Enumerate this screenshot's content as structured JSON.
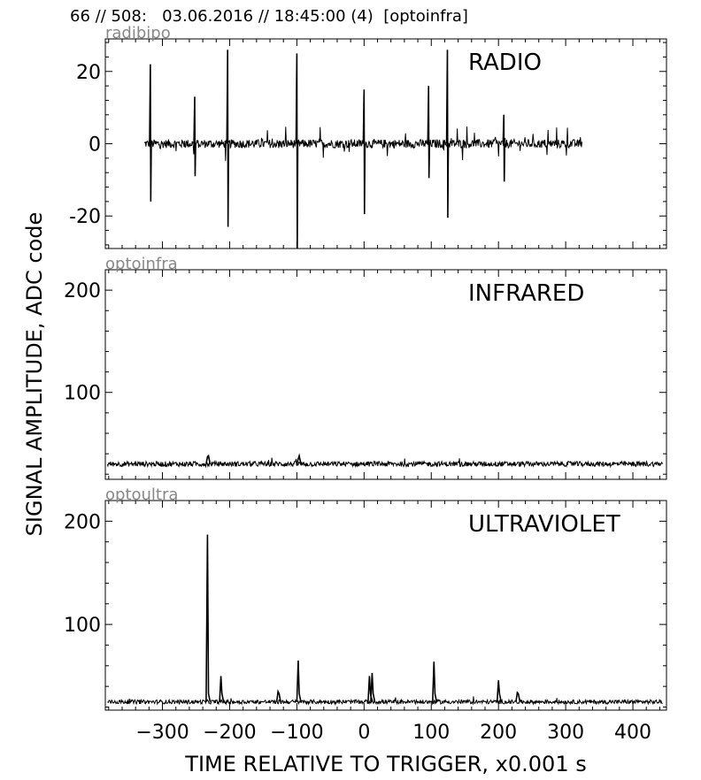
{
  "header": {
    "text": "66 // 508:   03.06.2016 // 18:45:00 (4)  [optoinfra]"
  },
  "figure": {
    "ylabel": "SIGNAL AMPLITUDE,  ADC code",
    "xlabel": "TIME RELATIVE TO TRIGGER,   x0.001 s"
  },
  "chart_data": [
    {
      "type": "line",
      "panel_label": "radibipo",
      "title": "RADIO",
      "xlim": [
        -385,
        450
      ],
      "ylim": [
        -29,
        29
      ],
      "yticks": [
        20,
        0,
        -20
      ],
      "ytick_labels": [
        "20",
        "0",
        "-20"
      ],
      "xticks": [
        -300,
        -200,
        -100,
        0,
        100,
        200,
        300,
        400
      ],
      "data_range": [
        -327,
        325
      ],
      "baseline": 0,
      "noise": 1.2,
      "spikes": [
        {
          "x": -318,
          "high": 22,
          "low": -16
        },
        {
          "x": -252,
          "high": 13,
          "low": -9
        },
        {
          "x": -203,
          "high": 26,
          "low": -23
        },
        {
          "x": -100,
          "high": 25,
          "low": -29
        },
        {
          "x": 0,
          "high": 15,
          "low": -19.5
        },
        {
          "x": 96,
          "high": 16,
          "low": -9.5
        },
        {
          "x": 124,
          "high": 26,
          "low": -20.5
        },
        {
          "x": 208,
          "high": 8,
          "low": -10.5
        }
      ],
      "series": [
        {
          "color": "#000000"
        }
      ]
    },
    {
      "type": "line",
      "panel_label": "optoinfra",
      "title": "INFRARED",
      "xlim": [
        -385,
        450
      ],
      "ylim": [
        15,
        220
      ],
      "yticks": [
        200,
        100
      ],
      "ytick_labels": [
        "200",
        "100"
      ],
      "xticks": [
        -300,
        -200,
        -100,
        0,
        100,
        200,
        300,
        400
      ],
      "data_range": [
        -382,
        445
      ],
      "baseline": 30,
      "noise": 2.5,
      "spikes": [
        {
          "x": -233,
          "high": 37
        },
        {
          "x": -98,
          "high": 35
        }
      ],
      "series": [
        {
          "color": "#000000"
        }
      ]
    },
    {
      "type": "line",
      "panel_label": "optoultra",
      "title": "ULTRAVIOLET",
      "xlim": [
        -385,
        450
      ],
      "ylim": [
        17,
        220
      ],
      "yticks": [
        200,
        100
      ],
      "ytick_labels": [
        "200",
        "100"
      ],
      "xticks": [
        -300,
        -200,
        -100,
        0,
        100,
        200,
        300,
        400
      ],
      "xtick_labels": [
        "−300",
        "−200",
        "−100",
        "0",
        "100",
        "200",
        "300",
        "400"
      ],
      "data_range": [
        -382,
        445
      ],
      "baseline": 25,
      "noise": 2,
      "spikes": [
        {
          "x": -233,
          "high": 187
        },
        {
          "x": -213,
          "high": 50
        },
        {
          "x": -128,
          "high": 35
        },
        {
          "x": -98,
          "high": 65
        },
        {
          "x": 8,
          "high": 50
        },
        {
          "x": 12,
          "high": 53
        },
        {
          "x": 104,
          "high": 64
        },
        {
          "x": 200,
          "high": 46
        },
        {
          "x": 228,
          "high": 34
        }
      ],
      "series": [
        {
          "color": "#000000"
        }
      ]
    }
  ]
}
